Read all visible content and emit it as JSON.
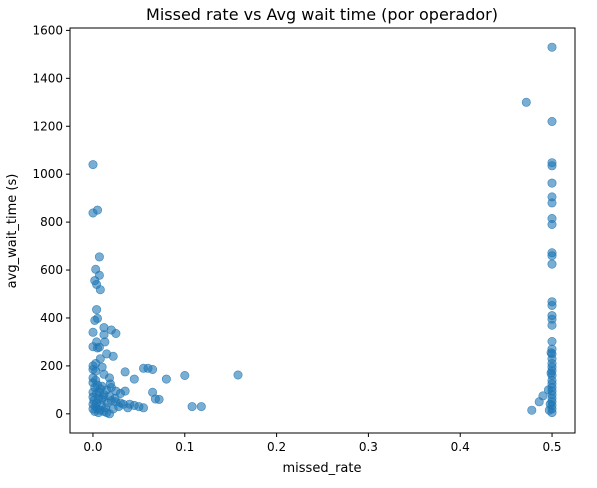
{
  "chart_data": {
    "type": "scatter",
    "title": "Missed rate vs Avg wait time (por operador)",
    "xlabel": "missed_rate",
    "ylabel": "avg_wait_time (s)",
    "xlim": [
      -0.025,
      0.525
    ],
    "ylim": [
      -80,
      1610
    ],
    "xticks": [
      "0.0",
      "0.1",
      "0.2",
      "0.3",
      "0.4",
      "0.5"
    ],
    "xtick_values": [
      0.0,
      0.1,
      0.2,
      0.3,
      0.4,
      0.5
    ],
    "yticks": [
      "0",
      "200",
      "400",
      "600",
      "800",
      "1000",
      "1200",
      "1400",
      "1600"
    ],
    "ytick_values": [
      0,
      200,
      400,
      600,
      800,
      1000,
      1200,
      1400,
      1600
    ],
    "grid": false,
    "marker_color": "#1f77b4",
    "marker_alpha": 0.6,
    "points": [
      [
        0.0,
        1040
      ],
      [
        0.0,
        838
      ],
      [
        0.005,
        850
      ],
      [
        0.007,
        655
      ],
      [
        0.003,
        603
      ],
      [
        0.007,
        578
      ],
      [
        0.002,
        556
      ],
      [
        0.004,
        540
      ],
      [
        0.008,
        518
      ],
      [
        0.004,
        435
      ],
      [
        0.005,
        398
      ],
      [
        0.002,
        390
      ],
      [
        0.0,
        340
      ],
      [
        0.012,
        360
      ],
      [
        0.012,
        330
      ],
      [
        0.02,
        350
      ],
      [
        0.025,
        335
      ],
      [
        0.004,
        300
      ],
      [
        0.013,
        300
      ],
      [
        0.0,
        280
      ],
      [
        0.005,
        275
      ],
      [
        0.007,
        278
      ],
      [
        0.015,
        250
      ],
      [
        0.022,
        240
      ],
      [
        0.008,
        230
      ],
      [
        0.003,
        210
      ],
      [
        0.0,
        200
      ],
      [
        0.01,
        195
      ],
      [
        0.0,
        185
      ],
      [
        0.003,
        178
      ],
      [
        0.012,
        165
      ],
      [
        0.018,
        150
      ],
      [
        0.035,
        175
      ],
      [
        0.045,
        145
      ],
      [
        0.055,
        190
      ],
      [
        0.06,
        190
      ],
      [
        0.065,
        185
      ],
      [
        0.08,
        145
      ],
      [
        0.1,
        160
      ],
      [
        0.158,
        162
      ],
      [
        0.0,
        150
      ],
      [
        0.003,
        140
      ],
      [
        0.0,
        130
      ],
      [
        0.005,
        120
      ],
      [
        0.01,
        115
      ],
      [
        0.002,
        110
      ],
      [
        0.008,
        105
      ],
      [
        0.015,
        100
      ],
      [
        0.02,
        110
      ],
      [
        0.025,
        95
      ],
      [
        0.0,
        90
      ],
      [
        0.004,
        85
      ],
      [
        0.012,
        80
      ],
      [
        0.018,
        75
      ],
      [
        0.03,
        85
      ],
      [
        0.035,
        95
      ],
      [
        0.0,
        70
      ],
      [
        0.006,
        65
      ],
      [
        0.01,
        60
      ],
      [
        0.02,
        55
      ],
      [
        0.025,
        50
      ],
      [
        0.03,
        45
      ],
      [
        0.04,
        40
      ],
      [
        0.045,
        35
      ],
      [
        0.05,
        30
      ],
      [
        0.055,
        25
      ],
      [
        0.065,
        90
      ],
      [
        0.068,
        62
      ],
      [
        0.072,
        60
      ],
      [
        0.108,
        30
      ],
      [
        0.118,
        30
      ],
      [
        0.0,
        40
      ],
      [
        0.003,
        30
      ],
      [
        0.005,
        20
      ],
      [
        0.008,
        15
      ],
      [
        0.012,
        10
      ],
      [
        0.015,
        5
      ],
      [
        0.018,
        0
      ],
      [
        0.001,
        55
      ],
      [
        0.004,
        45
      ],
      [
        0.009,
        35
      ],
      [
        0.014,
        25
      ],
      [
        0.022,
        20
      ],
      [
        0.028,
        30
      ],
      [
        0.033,
        40
      ],
      [
        0.038,
        25
      ],
      [
        0.002,
        10
      ],
      [
        0.006,
        5
      ],
      [
        0.0,
        20
      ],
      [
        0.016,
        45
      ],
      [
        0.011,
        70
      ],
      [
        0.024,
        65
      ],
      [
        0.007,
        90
      ],
      [
        0.019,
        125
      ],
      [
        0.472,
        1300
      ],
      [
        0.5,
        1530
      ],
      [
        0.5,
        1220
      ],
      [
        0.5,
        1048
      ],
      [
        0.5,
        1035
      ],
      [
        0.5,
        963
      ],
      [
        0.5,
        905
      ],
      [
        0.5,
        880
      ],
      [
        0.5,
        815
      ],
      [
        0.5,
        790
      ],
      [
        0.5,
        672
      ],
      [
        0.5,
        660
      ],
      [
        0.5,
        625
      ],
      [
        0.5,
        468
      ],
      [
        0.5,
        452
      ],
      [
        0.5,
        410
      ],
      [
        0.5,
        395
      ],
      [
        0.5,
        370
      ],
      [
        0.5,
        302
      ],
      [
        0.5,
        270
      ],
      [
        0.5,
        250
      ],
      [
        0.5,
        230
      ],
      [
        0.5,
        210
      ],
      [
        0.5,
        195
      ],
      [
        0.5,
        180
      ],
      [
        0.5,
        160
      ],
      [
        0.5,
        140
      ],
      [
        0.5,
        125
      ],
      [
        0.5,
        110
      ],
      [
        0.5,
        95
      ],
      [
        0.5,
        80
      ],
      [
        0.5,
        65
      ],
      [
        0.5,
        50
      ],
      [
        0.5,
        35
      ],
      [
        0.5,
        20
      ],
      [
        0.5,
        5
      ],
      [
        0.498,
        40
      ],
      [
        0.497,
        15
      ],
      [
        0.496,
        100
      ],
      [
        0.499,
        170
      ],
      [
        0.49,
        75
      ],
      [
        0.486,
        50
      ],
      [
        0.478,
        15
      ],
      [
        0.499,
        255
      ]
    ]
  }
}
